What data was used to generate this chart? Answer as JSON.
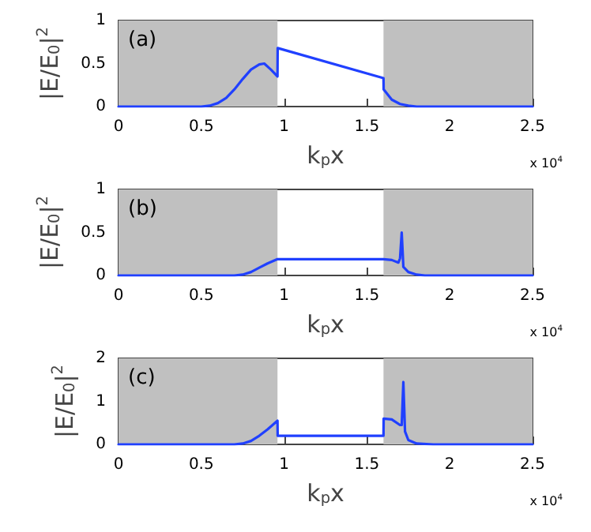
{
  "chart_data": [
    {
      "type": "line",
      "xlabel": "k$_{p}$x",
      "ylabel": "|E/E$_{0}$|$^{2}$",
      "annotations": [
        "(a)",
        "x 10$^{4}$"
      ],
      "x": [
        0,
        0.5,
        0.55,
        0.6,
        0.65,
        0.7,
        0.75,
        0.8,
        0.85,
        0.88,
        0.92,
        0.96,
        0.961,
        1.6,
        1.601,
        1.65,
        1.7,
        1.75,
        1.8,
        2.5
      ],
      "series": [
        {
          "color": "#2040ff",
          "values": [
            0,
            0,
            0.01,
            0.04,
            0.1,
            0.2,
            0.32,
            0.43,
            0.49,
            0.5,
            0.43,
            0.35,
            0.68,
            0.33,
            0.2,
            0.08,
            0.03,
            0.01,
            0,
            0
          ]
        }
      ],
      "xlim": [
        0,
        2.5
      ],
      "xticks": [
        0,
        0.5,
        1,
        1.5,
        2,
        2.5
      ],
      "ylim": [
        0,
        1
      ],
      "yticks": [
        0,
        0.5,
        1
      ],
      "grid": false,
      "marker": "none",
      "line_style": "solid",
      "bands": [
        {
          "axis": "x",
          "from": 0,
          "to": 0.96,
          "color": "#c0c0c0"
        },
        {
          "axis": "x",
          "from": 1.6,
          "to": 2.5,
          "color": "#c0c0c0"
        }
      ]
    },
    {
      "type": "line",
      "xlabel": "k$_{p}$x",
      "ylabel": "|E/E$_{0}$|$^{2}$",
      "annotations": [
        "(b)",
        "x 10$^{4}$"
      ],
      "x": [
        0,
        0.7,
        0.75,
        0.8,
        0.85,
        0.9,
        0.96,
        1.6,
        1.65,
        1.69,
        1.7,
        1.71,
        1.72,
        1.75,
        1.8,
        1.85,
        2.5
      ],
      "series": [
        {
          "color": "#2040ff",
          "values": [
            0,
            0,
            0.01,
            0.04,
            0.09,
            0.14,
            0.19,
            0.19,
            0.18,
            0.15,
            0.2,
            0.5,
            0.1,
            0.04,
            0.01,
            0,
            0
          ]
        }
      ],
      "xlim": [
        0,
        2.5
      ],
      "xticks": [
        0,
        0.5,
        1,
        1.5,
        2,
        2.5
      ],
      "ylim": [
        0,
        1
      ],
      "yticks": [
        0,
        0.5,
        1
      ],
      "grid": false,
      "marker": "none",
      "line_style": "solid",
      "bands": [
        {
          "axis": "x",
          "from": 0,
          "to": 0.96,
          "color": "#c0c0c0"
        },
        {
          "axis": "x",
          "from": 1.6,
          "to": 2.5,
          "color": "#c0c0c0"
        }
      ]
    },
    {
      "type": "line",
      "xlabel": "k$_{p}$x",
      "ylabel": "|E/E$_{0}$|$^{2}$",
      "annotations": [
        "(c)",
        "x 10$^{4}$"
      ],
      "x": [
        0,
        0.7,
        0.75,
        0.8,
        0.85,
        0.9,
        0.96,
        0.961,
        1.6,
        1.601,
        1.65,
        1.7,
        1.71,
        1.72,
        1.73,
        1.75,
        1.8,
        1.9,
        2.5
      ],
      "series": [
        {
          "color": "#2040ff",
          "values": [
            0,
            0,
            0.02,
            0.08,
            0.2,
            0.35,
            0.55,
            0.2,
            0.2,
            0.6,
            0.58,
            0.45,
            0.45,
            1.45,
            0.3,
            0.1,
            0.02,
            0,
            0
          ]
        }
      ],
      "xlim": [
        0,
        2.5
      ],
      "xticks": [
        0,
        0.5,
        1,
        1.5,
        2,
        2.5
      ],
      "ylim": [
        0,
        2
      ],
      "yticks": [
        0,
        1,
        2
      ],
      "grid": false,
      "marker": "none",
      "line_style": "solid",
      "bands": [
        {
          "axis": "x",
          "from": 0,
          "to": 0.96,
          "color": "#c0c0c0"
        },
        {
          "axis": "x",
          "from": 1.6,
          "to": 2.5,
          "color": "#c0c0c0"
        }
      ]
    }
  ]
}
